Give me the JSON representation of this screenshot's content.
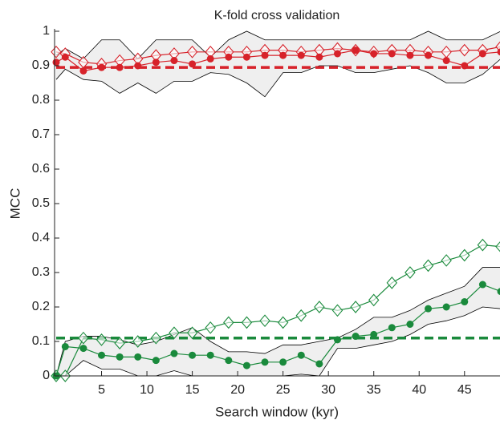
{
  "chart_data": {
    "type": "line",
    "title": "K-fold cross validation",
    "xlabel": "Search window (kyr)",
    "ylabel": "MCC",
    "x": [
      0,
      1,
      3,
      5,
      7,
      9,
      11,
      13,
      15,
      17,
      19,
      21,
      23,
      25,
      27,
      29,
      31,
      33,
      35,
      37,
      39,
      41,
      43,
      45,
      47,
      49
    ],
    "bands": [
      {
        "fill": "#efefef",
        "edge": "#000000",
        "upper": [
          0.93,
          0.95,
          0.92,
          0.975,
          0.975,
          0.92,
          0.975,
          0.975,
          0.975,
          0.925,
          0.975,
          1.0,
          0.975,
          0.975,
          0.975,
          0.975,
          0.975,
          0.975,
          0.975,
          0.975,
          0.975,
          1.0,
          0.975,
          0.975,
          0.975,
          1.0
        ],
        "lower": [
          0.86,
          0.89,
          0.86,
          0.855,
          0.82,
          0.85,
          0.82,
          0.855,
          0.855,
          0.88,
          0.875,
          0.85,
          0.81,
          0.88,
          0.88,
          0.9,
          0.9,
          0.88,
          0.88,
          0.89,
          0.9,
          0.88,
          0.85,
          0.85,
          0.875,
          0.92
        ]
      },
      {
        "fill": "#efefef",
        "edge": "#000000",
        "upper": [
          0,
          0.1,
          0.115,
          0.115,
          0.105,
          0.09,
          0.1,
          0.12,
          0.14,
          0.1,
          0.07,
          0.07,
          0.065,
          0.09,
          0.09,
          0.1,
          0.11,
          0.135,
          0.17,
          0.17,
          0.19,
          0.22,
          0.24,
          0.26,
          0.315,
          0.315
        ],
        "lower": [
          0,
          0,
          0.045,
          0.02,
          0.02,
          0,
          0,
          0.015,
          0,
          0,
          0,
          0,
          0,
          0,
          0.005,
          0,
          0.08,
          0.08,
          0.09,
          0.1,
          0.12,
          0.15,
          0.16,
          0.175,
          0.2,
          0.195
        ]
      }
    ],
    "series": [
      {
        "color": "#d7222a",
        "marker": "diamond",
        "values": [
          0.94,
          0.935,
          0.91,
          0.905,
          0.915,
          0.92,
          0.93,
          0.935,
          0.94,
          0.94,
          0.94,
          0.94,
          0.945,
          0.945,
          0.94,
          0.945,
          0.95,
          0.945,
          0.94,
          0.945,
          0.945,
          0.94,
          0.94,
          0.945,
          0.945,
          0.955
        ]
      },
      {
        "color": "#d7222a",
        "marker": "dot",
        "values": [
          0.91,
          0.925,
          0.885,
          0.895,
          0.895,
          0.9,
          0.91,
          0.915,
          0.905,
          0.92,
          0.925,
          0.925,
          0.93,
          0.93,
          0.93,
          0.925,
          0.935,
          0.945,
          0.935,
          0.935,
          0.93,
          0.93,
          0.915,
          0.9,
          0.935,
          0.94
        ]
      },
      {
        "color": "#1a8a3c",
        "marker": "diamond",
        "values": [
          0,
          0,
          0.11,
          0.105,
          0.095,
          0.1,
          0.11,
          0.125,
          0.125,
          0.14,
          0.155,
          0.155,
          0.16,
          0.155,
          0.175,
          0.2,
          0.19,
          0.2,
          0.22,
          0.27,
          0.3,
          0.32,
          0.335,
          0.35,
          0.38,
          0.375
        ]
      },
      {
        "color": "#1a8a3c",
        "marker": "dot",
        "values": [
          0,
          0.085,
          0.08,
          0.06,
          0.055,
          0.055,
          0.045,
          0.065,
          0.06,
          0.06,
          0.045,
          0.03,
          0.04,
          0.04,
          0.06,
          0.035,
          0.105,
          0.115,
          0.12,
          0.14,
          0.15,
          0.195,
          0.2,
          0.215,
          0.265,
          0.245
        ]
      }
    ],
    "reference_lines": [
      {
        "value": 0.895,
        "color": "#d7222a"
      },
      {
        "value": 0.11,
        "color": "#1a8a3c"
      }
    ],
    "xlim": [
      0,
      49
    ],
    "ylim": [
      0,
      1
    ],
    "xticks": [
      5,
      10,
      15,
      20,
      25,
      30,
      35,
      40,
      45
    ],
    "yticks": [
      0,
      0.1,
      0.2,
      0.3,
      0.4,
      0.5,
      0.6,
      0.7,
      0.8,
      0.9,
      1
    ]
  }
}
